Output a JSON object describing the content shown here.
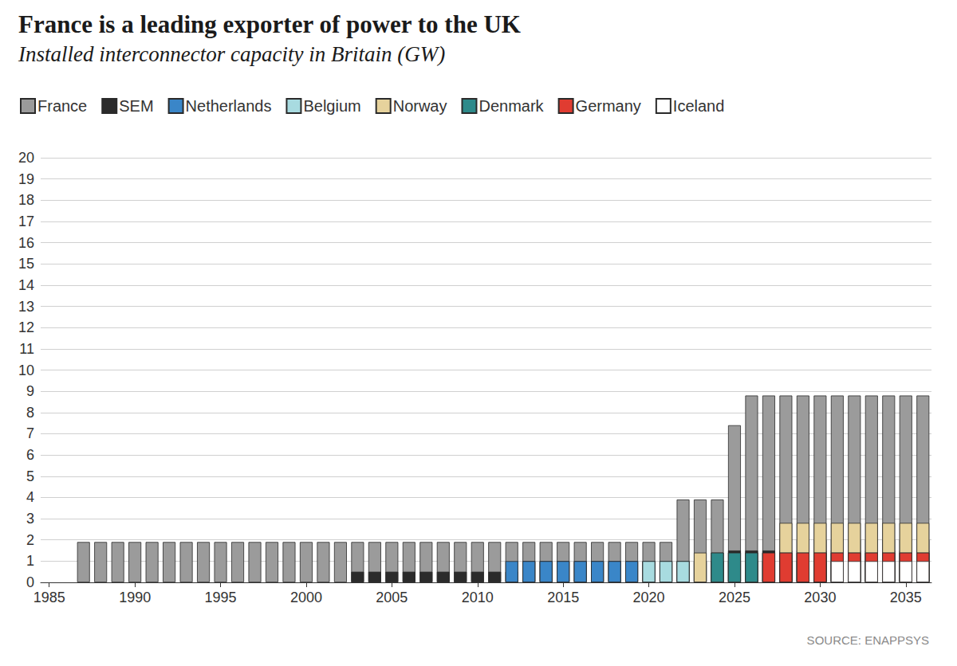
{
  "chart_data": {
    "type": "bar",
    "title": "France is a leading exporter of power to the UK",
    "subtitle": "Installed interconnector capacity in Britain (GW)",
    "source": "SOURCE: ENAPPSYS",
    "x": [
      1987,
      1988,
      1989,
      1990,
      1991,
      1992,
      1993,
      1994,
      1995,
      1996,
      1997,
      1998,
      1999,
      2000,
      2001,
      2002,
      2003,
      2004,
      2005,
      2006,
      2007,
      2008,
      2009,
      2010,
      2011,
      2012,
      2013,
      2014,
      2015,
      2016,
      2017,
      2018,
      2019,
      2020,
      2021,
      2022,
      2023,
      2024,
      2025,
      2026,
      2027,
      2028,
      2029,
      2030,
      2031,
      2032,
      2033,
      2034,
      2035,
      2036
    ],
    "series": [
      {
        "name": "France",
        "color": "#9b9b9b",
        "values": [
          1.9,
          1.9,
          1.9,
          1.9,
          1.9,
          1.9,
          1.9,
          1.9,
          1.9,
          1.9,
          1.9,
          1.9,
          1.9,
          1.9,
          1.9,
          1.9,
          1.9,
          1.9,
          1.9,
          1.9,
          1.9,
          1.9,
          1.9,
          1.9,
          1.9,
          1.9,
          1.9,
          1.9,
          1.9,
          1.9,
          1.9,
          1.9,
          1.9,
          1.9,
          1.9,
          3.9,
          3.9,
          3.9,
          7.4,
          8.8,
          8.8,
          8.8,
          8.8,
          8.8,
          8.8,
          8.8,
          8.8,
          8.8,
          8.8,
          8.8
        ]
      },
      {
        "name": "SEM",
        "color": "#2b2b2b",
        "values": [
          null,
          null,
          null,
          null,
          null,
          null,
          null,
          null,
          null,
          null,
          null,
          null,
          null,
          null,
          null,
          null,
          0.5,
          0.5,
          0.5,
          0.5,
          0.5,
          0.5,
          0.5,
          0.5,
          0.5,
          0.5,
          1.0,
          1.0,
          1.0,
          1.0,
          1.0,
          1.0,
          1.0,
          1.0,
          1.0,
          1.0,
          1.0,
          1.0,
          1.5,
          1.5,
          1.5,
          1.5,
          1.5,
          1.5,
          1.5,
          1.5,
          1.5,
          1.5,
          1.5,
          1.5
        ]
      },
      {
        "name": "Netherlands",
        "color": "#3a86c8",
        "values": [
          null,
          null,
          null,
          null,
          null,
          null,
          null,
          null,
          null,
          null,
          null,
          null,
          null,
          null,
          null,
          null,
          null,
          null,
          null,
          null,
          null,
          null,
          null,
          null,
          null,
          1.0,
          1.0,
          1.0,
          1.0,
          1.0,
          1.0,
          1.0,
          1.0,
          1.0,
          1.0,
          1.0,
          1.0,
          1.0,
          1.0,
          1.0,
          1.0,
          1.0,
          1.0,
          1.0,
          1.0,
          1.0,
          1.0,
          1.0,
          1.0,
          1.0
        ]
      },
      {
        "name": "Belgium",
        "color": "#a8dbe0",
        "values": [
          null,
          null,
          null,
          null,
          null,
          null,
          null,
          null,
          null,
          null,
          null,
          null,
          null,
          null,
          null,
          null,
          null,
          null,
          null,
          null,
          null,
          null,
          null,
          null,
          null,
          null,
          null,
          null,
          null,
          null,
          null,
          null,
          null,
          1.0,
          1.0,
          1.0,
          1.0,
          1.0,
          1.0,
          1.0,
          1.0,
          1.0,
          2.0,
          2.0,
          2.0,
          2.0,
          2.0,
          2.0,
          2.0,
          2.0
        ]
      },
      {
        "name": "Norway",
        "color": "#e6d29c",
        "values": [
          null,
          null,
          null,
          null,
          null,
          null,
          null,
          null,
          null,
          null,
          null,
          null,
          null,
          null,
          null,
          null,
          null,
          null,
          null,
          null,
          null,
          null,
          null,
          null,
          null,
          null,
          null,
          null,
          null,
          null,
          null,
          null,
          null,
          null,
          null,
          null,
          1.4,
          1.4,
          1.4,
          1.4,
          1.4,
          2.8,
          2.8,
          2.8,
          2.8,
          2.8,
          2.8,
          2.8,
          2.8,
          2.8
        ]
      },
      {
        "name": "Denmark",
        "color": "#2e8a8a",
        "values": [
          null,
          null,
          null,
          null,
          null,
          null,
          null,
          null,
          null,
          null,
          null,
          null,
          null,
          null,
          null,
          null,
          null,
          null,
          null,
          null,
          null,
          null,
          null,
          null,
          null,
          null,
          null,
          null,
          null,
          null,
          null,
          null,
          null,
          null,
          null,
          null,
          null,
          1.4,
          1.4,
          1.4,
          1.4,
          1.4,
          1.4,
          1.4,
          1.4,
          1.4,
          1.4,
          1.4,
          1.4,
          1.4
        ]
      },
      {
        "name": "Germany",
        "color": "#e03c31",
        "values": [
          null,
          null,
          null,
          null,
          null,
          null,
          null,
          null,
          null,
          null,
          null,
          null,
          null,
          null,
          null,
          null,
          null,
          null,
          null,
          null,
          null,
          null,
          null,
          null,
          null,
          null,
          null,
          null,
          null,
          null,
          null,
          null,
          null,
          null,
          null,
          null,
          null,
          null,
          null,
          null,
          1.4,
          1.4,
          1.4,
          1.4,
          1.4,
          1.4,
          1.4,
          1.4,
          1.4,
          1.4
        ]
      },
      {
        "name": "Iceland",
        "color": "#ffffff",
        "values": [
          null,
          null,
          null,
          null,
          null,
          null,
          null,
          null,
          null,
          null,
          null,
          null,
          null,
          null,
          null,
          null,
          null,
          null,
          null,
          null,
          null,
          null,
          null,
          null,
          null,
          null,
          null,
          null,
          null,
          null,
          null,
          null,
          null,
          null,
          null,
          null,
          null,
          null,
          null,
          null,
          null,
          null,
          null,
          null,
          1.0,
          1.0,
          1.0,
          1.0,
          1.0,
          1.0
        ]
      }
    ],
    "xlim": [
      1984.5,
      2036.5
    ],
    "xticks": [
      1985,
      1990,
      1995,
      2000,
      2005,
      2010,
      2015,
      2020,
      2025,
      2030,
      2035
    ],
    "ylim": [
      0,
      20
    ],
    "yticks": [
      0,
      1,
      2,
      3,
      4,
      5,
      6,
      7,
      8,
      9,
      10,
      11,
      12,
      13,
      14,
      15,
      16,
      17,
      18,
      19,
      20
    ],
    "grid": true,
    "stacked": true,
    "legend": "top-left"
  }
}
